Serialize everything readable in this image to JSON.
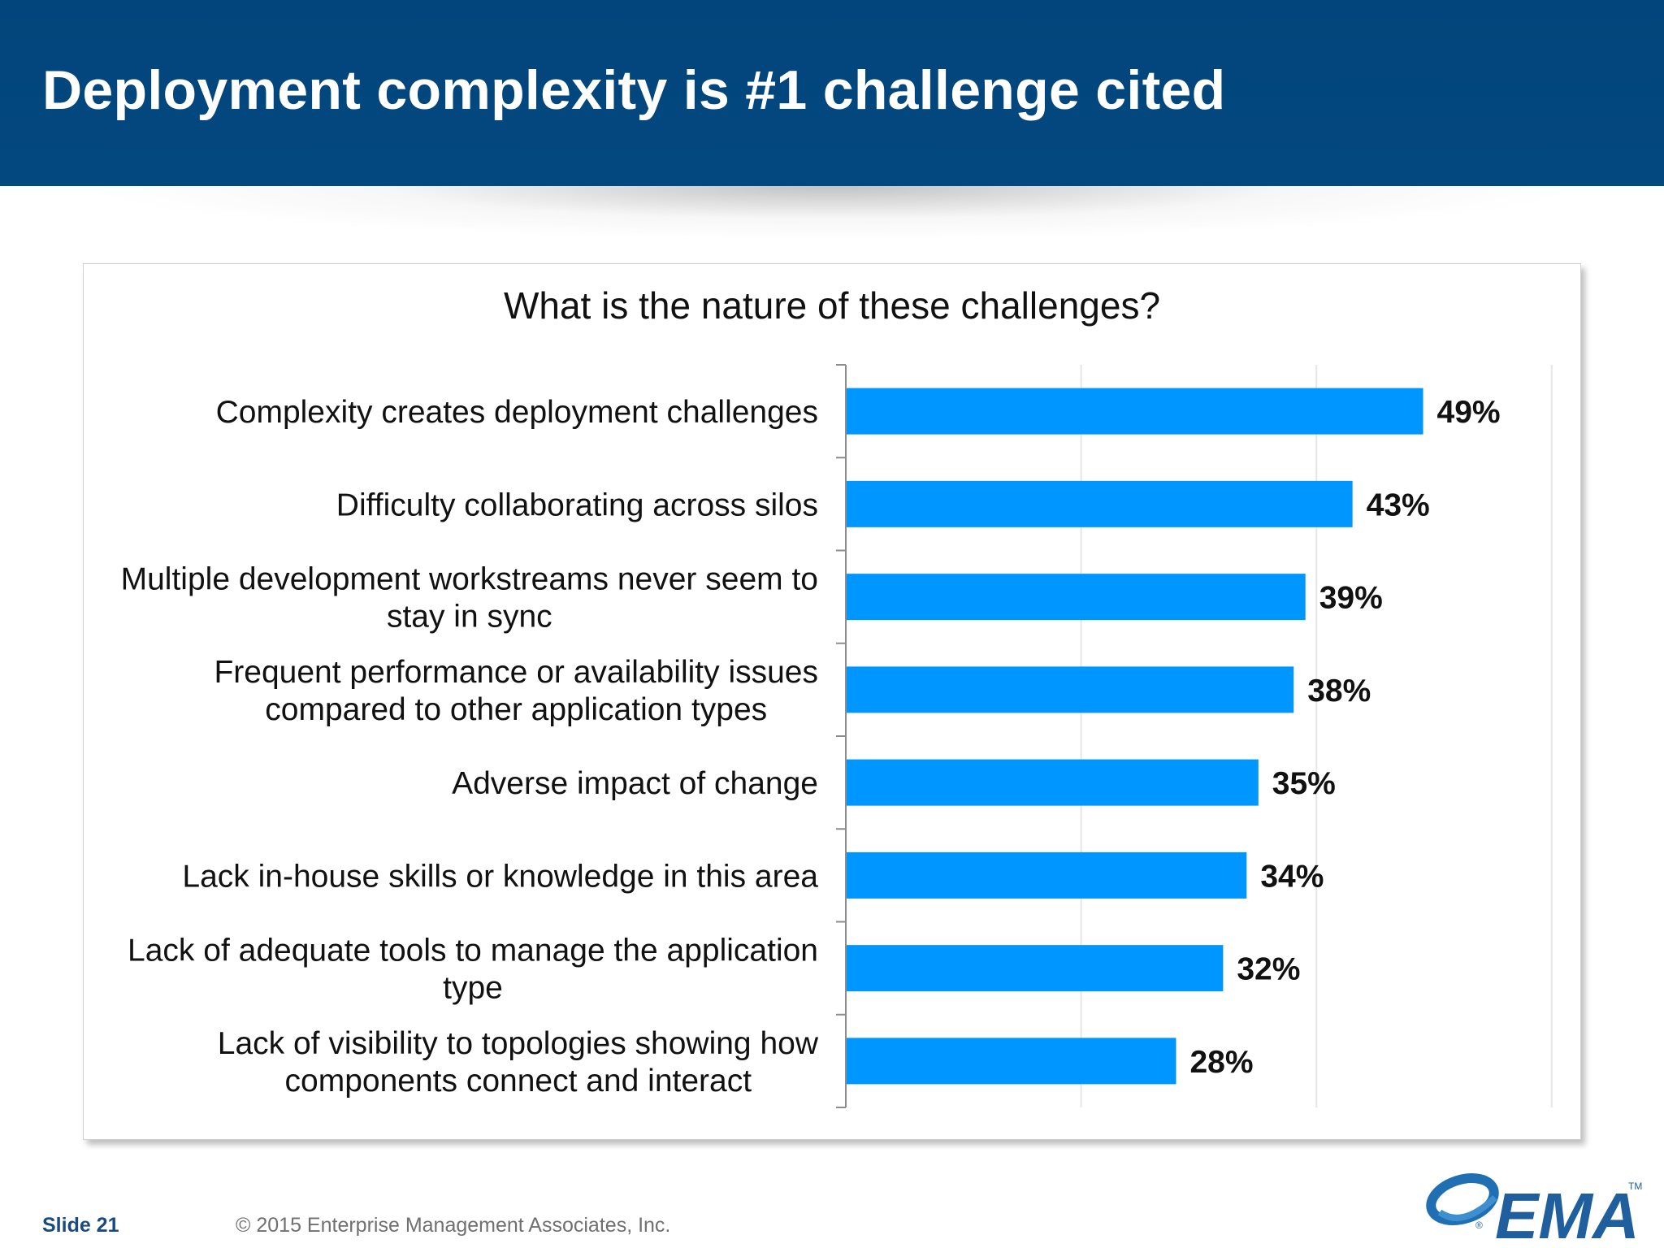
{
  "slide": {
    "title": "Deployment complexity is #1 challenge cited",
    "footer": {
      "slide_number": "Slide 21",
      "copyright": "© 2015 Enterprise Management Associates, Inc."
    },
    "logo": {
      "text": "EMA",
      "trademark": "TM",
      "registered": "®"
    }
  },
  "colors": {
    "header_bg": "#02457c",
    "bar": "#0096ff",
    "gridline": "#e6e6e6",
    "axis": "#8c8c8c"
  },
  "chart_data": {
    "type": "bar",
    "orientation": "horizontal",
    "title": "What is the nature of these challenges?",
    "categories": [
      [
        "Complexity creates deployment challenges"
      ],
      [
        "Difficulty collaborating across silos"
      ],
      [
        "Multiple development workstreams never seem to",
        "stay in sync"
      ],
      [
        "Frequent performance or availability issues",
        "compared to other application types"
      ],
      [
        "Adverse impact of change"
      ],
      [
        "Lack in-house skills or knowledge in this area"
      ],
      [
        "Lack of adequate tools to manage the application",
        "type"
      ],
      [
        "Lack of visibility to topologies showing how",
        "components connect and interact"
      ]
    ],
    "values": [
      49,
      43,
      39,
      38,
      35,
      34,
      32,
      28
    ],
    "value_labels": [
      "49%",
      "43%",
      "39%",
      "38%",
      "35%",
      "34%",
      "32%",
      "28%"
    ],
    "xlim": [
      0,
      60
    ],
    "grid": "vertical gridlines every 20%",
    "legend": "none"
  }
}
